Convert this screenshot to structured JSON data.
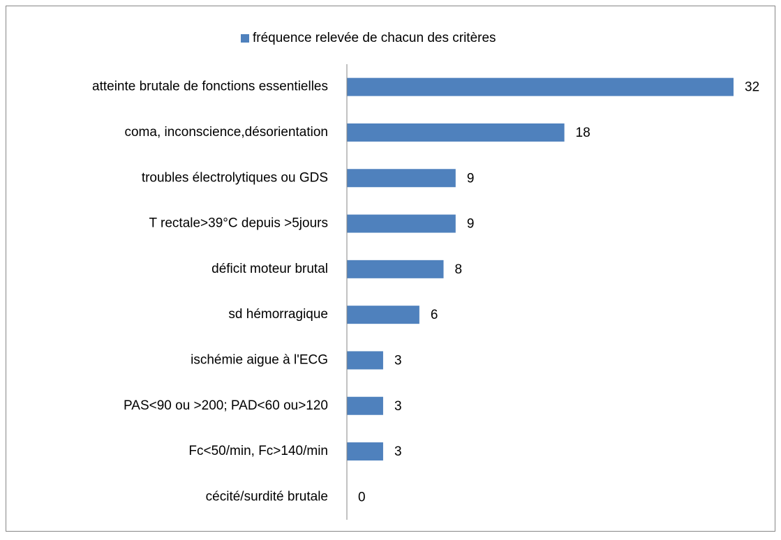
{
  "chart_data": {
    "type": "bar",
    "orientation": "horizontal",
    "legend": "top",
    "categories": [
      "atteinte brutale de fonctions essentielles",
      "coma, inconscience,désorientation",
      "troubles électrolytiques ou GDS",
      "T rectale>39°C depuis >5jours",
      "déficit moteur brutal",
      "sd hémorragique",
      "ischémie aigue à l'ECG",
      "PAS<90 ou >200; PAD<60 ou>120",
      "Fc<50/min, Fc>140/min",
      "cécité/surdité brutale"
    ],
    "series": [
      {
        "name": "fréquence relevée de chacun des critères",
        "color": "#4f81bd",
        "values": [
          32,
          18,
          9,
          9,
          8,
          6,
          3,
          3,
          3,
          0
        ]
      }
    ],
    "xlim": [
      0,
      32
    ]
  }
}
